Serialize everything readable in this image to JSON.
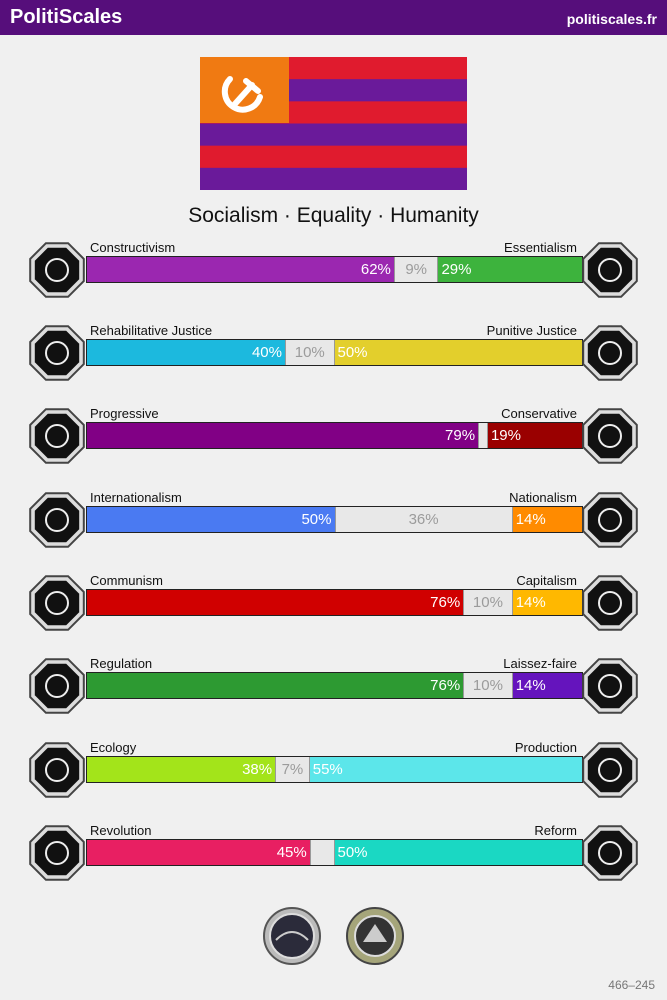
{
  "header": {
    "title": "PolitiScales",
    "site": "politiscales.fr"
  },
  "flag": {
    "emblem": "hammer-and-sickle",
    "stripes": [
      "#e01b2e",
      "#6a1a9a",
      "#e01b2e",
      "#6a1a9a",
      "#e01b2e",
      "#6a1a9a"
    ],
    "canton_color": "#f07a12"
  },
  "slogan": "Socialism · Equality · Humanity",
  "axes": [
    {
      "left_label": "Constructivism",
      "right_label": "Essentialism",
      "left_pct": "62%",
      "mid_pct": "9%",
      "right_pct": "29%",
      "left_value": 62,
      "mid_value": 9,
      "right_value": 29,
      "left_color": "#9b27b0",
      "right_color": "#3db33d",
      "left_icon": "fingerprint-icon",
      "right_icon": "dna-flower-icon"
    },
    {
      "left_label": "Rehabilitative Justice",
      "right_label": "Punitive Justice",
      "left_pct": "40%",
      "mid_pct": "10%",
      "right_pct": "50%",
      "left_value": 40,
      "mid_value": 10,
      "right_value": 50,
      "left_color": "#1cb9de",
      "right_color": "#e3cf2c",
      "left_icon": "handshake-icon",
      "right_icon": "prison-bars-icon"
    },
    {
      "left_label": "Progressive",
      "right_label": "Conservative",
      "left_pct": "79%",
      "mid_pct": "",
      "right_pct": "19%",
      "left_value": 79,
      "mid_value": 2,
      "right_value": 19,
      "left_color": "#810085",
      "right_color": "#9a0000",
      "left_icon": "torch-icon",
      "right_icon": "quill-icon"
    },
    {
      "left_label": "Internationalism",
      "right_label": "Nationalism",
      "left_pct": "50%",
      "mid_pct": "36%",
      "right_pct": "14%",
      "left_value": 50,
      "mid_value": 36,
      "right_value": 14,
      "left_color": "#4a7af2",
      "right_color": "#ff8b00",
      "left_icon": "globe-icon",
      "right_icon": "flag-icon"
    },
    {
      "left_label": "Communism",
      "right_label": "Capitalism",
      "left_pct": "76%",
      "mid_pct": "10%",
      "right_pct": "14%",
      "left_value": 76,
      "mid_value": 10,
      "right_value": 14,
      "left_color": "#d00000",
      "right_color": "#ffb800",
      "left_icon": "hammer-sickle-icon",
      "right_icon": "money-bag-icon"
    },
    {
      "left_label": "Regulation",
      "right_label": "Laissez-faire",
      "left_pct": "76%",
      "mid_pct": "10%",
      "right_pct": "14%",
      "left_value": 76,
      "mid_value": 10,
      "right_value": 14,
      "left_color": "#2d9a32",
      "right_color": "#6514bd",
      "left_icon": "ruler-icon",
      "right_icon": "butterflies-icon"
    },
    {
      "left_label": "Ecology",
      "right_label": "Production",
      "left_pct": "38%",
      "mid_pct": "7%",
      "right_pct": "55%",
      "left_value": 38,
      "mid_value": 7,
      "right_value": 55,
      "left_color": "#a3e41a",
      "right_color": "#5ce6ea",
      "left_icon": "sprout-icon",
      "right_icon": "factory-icon"
    },
    {
      "left_label": "Revolution",
      "right_label": "Reform",
      "left_pct": "45%",
      "mid_pct": "",
      "right_pct": "50%",
      "left_value": 45,
      "mid_value": 5,
      "right_value": 50,
      "left_color": "#e81f62",
      "right_color": "#1ad8c3",
      "left_icon": "fist-icon",
      "right_icon": "parliament-icon"
    }
  ],
  "badges": [
    "coin-badge-icon",
    "seal-badge-icon"
  ],
  "footer_code": "466–245"
}
